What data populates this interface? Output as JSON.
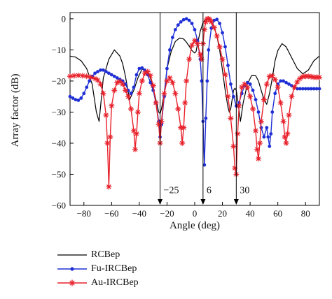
{
  "chart_data": {
    "type": "line",
    "xlabel": "Angle (deg)",
    "ylabel": "Array factor (dB)",
    "xlim": [
      -90,
      90
    ],
    "ylim": [
      -60,
      2
    ],
    "xticks": [
      -80,
      -60,
      -40,
      -20,
      0,
      20,
      40,
      60,
      80
    ],
    "yticks": [
      0,
      -10,
      -20,
      -30,
      -40,
      -50,
      -60
    ],
    "grid": false,
    "legend_position": "bottom-left",
    "annotations": [
      {
        "label": "−25",
        "x": -25
      },
      {
        "label": "6",
        "x": 6
      },
      {
        "label": "30",
        "x": 30
      }
    ],
    "series": [
      {
        "name": "RCBep",
        "color": "#000000",
        "marker": "none",
        "x": [
          -90,
          -86,
          -82,
          -78,
          -74,
          -71,
          -69,
          -66,
          -62,
          -58,
          -54,
          -52,
          -50,
          -47,
          -44,
          -41,
          -38,
          -35,
          -32,
          -29,
          -27,
          -26,
          -25,
          -24,
          -22,
          -20,
          -17,
          -14,
          -11,
          -8,
          -6,
          -4,
          -2,
          0,
          1,
          2,
          4,
          6,
          8,
          10,
          12,
          14,
          16,
          18,
          20,
          22,
          24,
          25,
          26,
          27,
          28,
          29,
          30,
          31,
          33,
          35,
          38,
          41,
          44,
          46,
          48,
          50,
          52,
          54,
          56,
          58,
          60,
          63,
          66,
          70,
          74,
          78,
          82,
          86,
          90
        ],
        "values": [
          -12,
          -12.3,
          -13.5,
          -16,
          -21,
          -30,
          -33,
          -19,
          -13,
          -10,
          -12,
          -14.5,
          -18.5,
          -26,
          -23,
          -19,
          -16.2,
          -16.5,
          -19,
          -24,
          -28,
          -30,
          -30.5,
          -29,
          -24,
          -16,
          -10.5,
          -7.3,
          -6.2,
          -6.5,
          -7.5,
          -8.8,
          -10.2,
          -11,
          -10.5,
          -8,
          -4,
          -1.2,
          -0.2,
          0,
          -0.8,
          -2.5,
          -5.5,
          -10,
          -16.5,
          -23,
          -28.5,
          -30,
          -29,
          -26,
          -23,
          -22.3,
          -23,
          -26,
          -33,
          -27,
          -21,
          -18.3,
          -18.3,
          -20,
          -23,
          -26,
          -27.5,
          -24,
          -19,
          -13.5,
          -10.2,
          -8,
          -9,
          -12.5,
          -16,
          -17.7,
          -16.5,
          -13.5,
          -12
        ]
      },
      {
        "name": "Fu-IRCBep",
        "color": "#1f2fd6",
        "marker": "circle",
        "x": [
          -90,
          -88,
          -86,
          -84,
          -82,
          -80,
          -78,
          -76,
          -74,
          -72,
          -70,
          -68,
          -66,
          -64,
          -62,
          -60,
          -58,
          -56,
          -54,
          -52,
          -50,
          -48,
          -46,
          -44,
          -42,
          -40,
          -38,
          -36,
          -34,
          -32,
          -30,
          -28,
          -26,
          -25,
          -24,
          -22,
          -20,
          -18,
          -16,
          -14,
          -12,
          -10,
          -8,
          -6,
          -4,
          -2,
          0,
          2,
          4,
          5,
          6,
          7,
          8,
          9,
          10,
          12,
          14,
          16,
          18,
          20,
          22,
          24,
          26,
          28,
          30,
          32,
          34,
          36,
          38,
          40,
          42,
          44,
          46,
          48,
          50,
          52,
          53,
          54,
          55,
          56,
          58,
          60,
          62,
          64,
          66,
          68,
          70,
          72,
          74,
          76,
          78,
          80,
          82,
          84,
          86,
          88,
          90
        ],
        "values": [
          -25,
          -25.5,
          -26,
          -26.2,
          -25.5,
          -24,
          -22,
          -20,
          -18.5,
          -17.5,
          -17,
          -16.5,
          -16.5,
          -17,
          -17.5,
          -18,
          -18.5,
          -19,
          -19.5,
          -20,
          -21,
          -23,
          -24,
          -22,
          -18,
          -16,
          -15.8,
          -16.5,
          -18,
          -20.5,
          -23,
          -27,
          -33,
          -38,
          -34,
          -25,
          -16,
          -10,
          -6,
          -3.5,
          -2,
          -1,
          -0.3,
          0,
          -0.5,
          -1.5,
          -3.5,
          -7,
          -13,
          -20,
          -33,
          -47,
          -32,
          -20,
          -10,
          -3,
          -0.5,
          -0.2,
          -1.5,
          -4.5,
          -9,
          -15,
          -21,
          -25,
          -28,
          -27,
          -24,
          -21.5,
          -20.5,
          -21,
          -23,
          -26,
          -30,
          -35,
          -38,
          -35,
          -38,
          -41,
          -37,
          -30,
          -24,
          -21,
          -20,
          -20,
          -20.5,
          -21,
          -21.5,
          -22,
          -22.5,
          -22.5,
          -22.5,
          -22.5,
          -22.5,
          -22.5,
          -22.5,
          -22.5,
          -22.5
        ]
      },
      {
        "name": "Au-IRCBep",
        "color": "#e8202a",
        "marker": "star",
        "x": [
          -90,
          -87,
          -84,
          -81,
          -78,
          -75,
          -72,
          -70,
          -68,
          -66,
          -64,
          -63,
          -62,
          -61,
          -60,
          -58,
          -56,
          -54,
          -52,
          -50,
          -48,
          -46,
          -44,
          -43,
          -42,
          -41,
          -40,
          -38,
          -36,
          -34,
          -32,
          -30,
          -28,
          -26,
          -25,
          -24,
          -22,
          -20,
          -18,
          -16,
          -14,
          -12,
          -10,
          -9,
          -8,
          -7,
          -6,
          -4,
          -2,
          0,
          2,
          4,
          5,
          6,
          7,
          8,
          9,
          10,
          11,
          12,
          14,
          16,
          18,
          20,
          22,
          24,
          26,
          28,
          29,
          30,
          31,
          32,
          34,
          36,
          38,
          40,
          42,
          44,
          45,
          46,
          47,
          48,
          50,
          52,
          54,
          56,
          58,
          60,
          62,
          64,
          65,
          66,
          67,
          68,
          70,
          72,
          74,
          76,
          78,
          80,
          82,
          84,
          86,
          88,
          90
        ],
        "values": [
          -18.5,
          -18.3,
          -18.2,
          -18.3,
          -18.5,
          -18.8,
          -19.2,
          -19.7,
          -21,
          -24,
          -31,
          -40,
          -54,
          -38,
          -28,
          -23,
          -20.5,
          -20.2,
          -21,
          -23,
          -25,
          -29,
          -36,
          -42,
          -37,
          -30,
          -24,
          -20,
          -17.5,
          -17,
          -18.3,
          -21.5,
          -27,
          -34,
          -40,
          -33,
          -24,
          -20,
          -19,
          -20.5,
          -24,
          -29,
          -35,
          -40,
          -35,
          -27,
          -20,
          -13,
          -8.5,
          -7,
          -8,
          -11.5,
          -13,
          -8,
          -3.5,
          -1,
          0,
          0,
          -0.3,
          -1,
          -2.8,
          -5.5,
          -9,
          -13,
          -18,
          -25,
          -32,
          -41,
          -48,
          -50,
          -37,
          -28,
          -22,
          -21,
          -22,
          -25,
          -29,
          -36,
          -42,
          -45,
          -40,
          -33,
          -26,
          -21,
          -18.5,
          -18.3,
          -19.5,
          -22,
          -27,
          -33,
          -38,
          -40,
          -37,
          -31,
          -25,
          -22,
          -20.3,
          -19.2,
          -18.6,
          -18.5,
          -18.5,
          -18.6,
          -18.8,
          -18.8,
          -18.8
        ]
      }
    ]
  }
}
